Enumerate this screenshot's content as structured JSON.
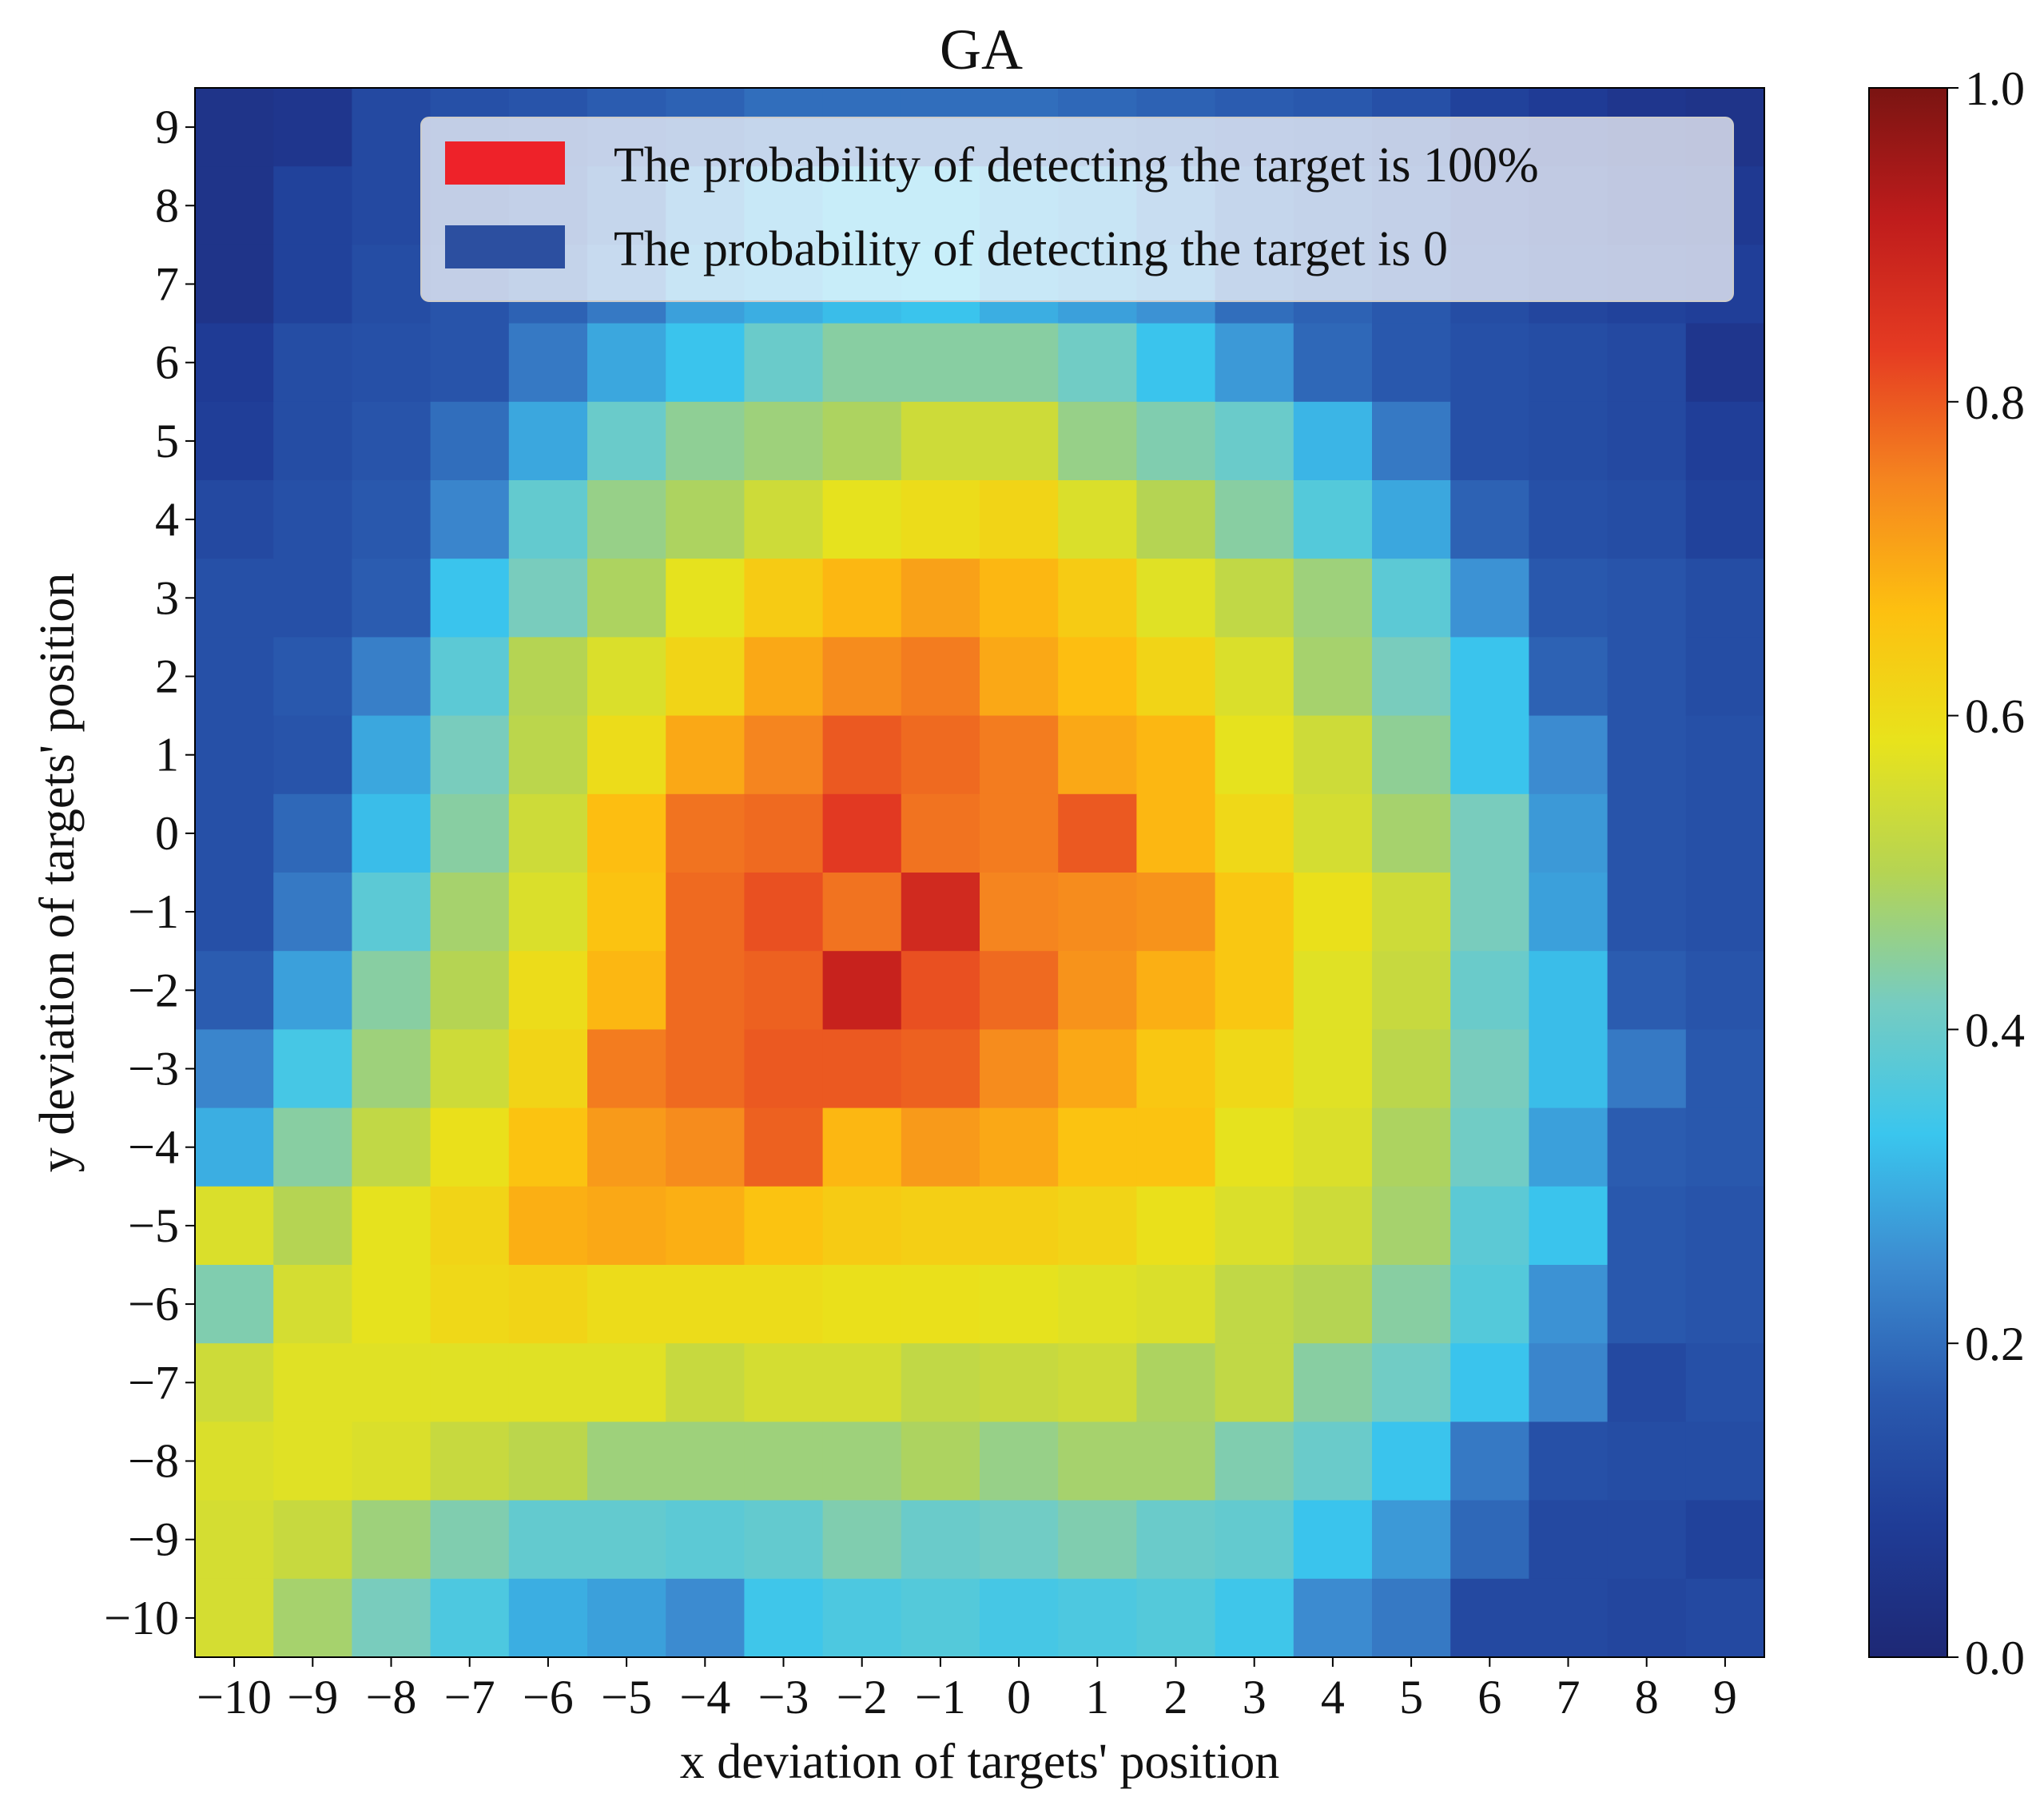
{
  "chart_data": {
    "type": "heatmap",
    "title": "GA",
    "xlabel": "x deviation of targets' position",
    "ylabel": "y deviation of targets' position",
    "x": [
      -10,
      -9,
      -8,
      -7,
      -6,
      -5,
      -4,
      -3,
      -2,
      -1,
      0,
      1,
      2,
      3,
      4,
      5,
      6,
      7,
      8,
      9
    ],
    "y": [
      9,
      8,
      7,
      6,
      5,
      4,
      3,
      2,
      1,
      0,
      -1,
      -2,
      -3,
      -4,
      -5,
      -6,
      -7,
      -8,
      -9,
      -10
    ],
    "x_tick_labels": [
      "−10",
      "−9",
      "−8",
      "−7",
      "−6",
      "−5",
      "−4",
      "−3",
      "−2",
      "−1",
      "0",
      "1",
      "2",
      "3",
      "4",
      "5",
      "6",
      "7",
      "8",
      "9"
    ],
    "y_tick_labels": [
      "9",
      "8",
      "7",
      "6",
      "5",
      "4",
      "3",
      "2",
      "1",
      "0",
      "−1",
      "−2",
      "−3",
      "−4",
      "−5",
      "−6",
      "−7",
      "−8",
      "−9",
      "−10"
    ],
    "values": [
      [
        0.05,
        0.06,
        0.12,
        0.14,
        0.15,
        0.17,
        0.18,
        0.2,
        0.2,
        0.2,
        0.2,
        0.19,
        0.18,
        0.17,
        0.16,
        0.14,
        0.1,
        0.08,
        0.06,
        0.05
      ],
      [
        0.05,
        0.1,
        0.12,
        0.14,
        0.16,
        0.2,
        0.26,
        0.3,
        0.32,
        0.32,
        0.3,
        0.28,
        0.24,
        0.2,
        0.18,
        0.16,
        0.12,
        0.1,
        0.08,
        0.07
      ],
      [
        0.05,
        0.1,
        0.13,
        0.15,
        0.18,
        0.22,
        0.28,
        0.3,
        0.32,
        0.33,
        0.3,
        0.28,
        0.26,
        0.2,
        0.18,
        0.16,
        0.13,
        0.11,
        0.1,
        0.09
      ],
      [
        0.08,
        0.13,
        0.14,
        0.15,
        0.22,
        0.29,
        0.33,
        0.4,
        0.44,
        0.44,
        0.44,
        0.41,
        0.33,
        0.27,
        0.19,
        0.16,
        0.14,
        0.13,
        0.12,
        0.06
      ],
      [
        0.09,
        0.13,
        0.15,
        0.2,
        0.29,
        0.4,
        0.45,
        0.47,
        0.49,
        0.54,
        0.54,
        0.46,
        0.43,
        0.4,
        0.31,
        0.22,
        0.14,
        0.13,
        0.12,
        0.09
      ],
      [
        0.12,
        0.14,
        0.16,
        0.24,
        0.39,
        0.46,
        0.49,
        0.54,
        0.58,
        0.6,
        0.62,
        0.56,
        0.5,
        0.44,
        0.37,
        0.29,
        0.18,
        0.14,
        0.13,
        0.1
      ],
      [
        0.14,
        0.14,
        0.17,
        0.33,
        0.42,
        0.49,
        0.58,
        0.64,
        0.68,
        0.71,
        0.68,
        0.64,
        0.57,
        0.52,
        0.47,
        0.38,
        0.26,
        0.16,
        0.15,
        0.13
      ],
      [
        0.14,
        0.16,
        0.23,
        0.38,
        0.5,
        0.56,
        0.62,
        0.7,
        0.74,
        0.76,
        0.7,
        0.67,
        0.62,
        0.56,
        0.48,
        0.42,
        0.33,
        0.18,
        0.15,
        0.13
      ],
      [
        0.14,
        0.15,
        0.29,
        0.42,
        0.51,
        0.6,
        0.7,
        0.75,
        0.8,
        0.78,
        0.76,
        0.7,
        0.68,
        0.58,
        0.54,
        0.45,
        0.33,
        0.25,
        0.15,
        0.14
      ],
      [
        0.14,
        0.19,
        0.32,
        0.44,
        0.54,
        0.67,
        0.77,
        0.78,
        0.84,
        0.77,
        0.76,
        0.8,
        0.68,
        0.61,
        0.55,
        0.48,
        0.42,
        0.27,
        0.15,
        0.14
      ],
      [
        0.14,
        0.22,
        0.38,
        0.48,
        0.56,
        0.66,
        0.78,
        0.81,
        0.77,
        0.88,
        0.75,
        0.74,
        0.73,
        0.65,
        0.59,
        0.54,
        0.42,
        0.28,
        0.15,
        0.14
      ],
      [
        0.17,
        0.28,
        0.44,
        0.5,
        0.6,
        0.68,
        0.78,
        0.79,
        0.9,
        0.81,
        0.78,
        0.73,
        0.69,
        0.65,
        0.57,
        0.53,
        0.4,
        0.32,
        0.17,
        0.15
      ],
      [
        0.24,
        0.35,
        0.47,
        0.54,
        0.62,
        0.76,
        0.78,
        0.8,
        0.8,
        0.79,
        0.74,
        0.7,
        0.65,
        0.61,
        0.57,
        0.51,
        0.42,
        0.32,
        0.22,
        0.16
      ],
      [
        0.3,
        0.44,
        0.52,
        0.59,
        0.66,
        0.72,
        0.74,
        0.79,
        0.68,
        0.72,
        0.7,
        0.66,
        0.66,
        0.58,
        0.56,
        0.49,
        0.41,
        0.28,
        0.17,
        0.16
      ],
      [
        0.56,
        0.5,
        0.58,
        0.62,
        0.69,
        0.7,
        0.69,
        0.66,
        0.64,
        0.63,
        0.63,
        0.62,
        0.59,
        0.56,
        0.54,
        0.48,
        0.38,
        0.33,
        0.16,
        0.15
      ],
      [
        0.43,
        0.55,
        0.58,
        0.61,
        0.62,
        0.6,
        0.6,
        0.6,
        0.59,
        0.59,
        0.58,
        0.57,
        0.56,
        0.52,
        0.5,
        0.44,
        0.37,
        0.26,
        0.16,
        0.15
      ],
      [
        0.54,
        0.57,
        0.57,
        0.57,
        0.57,
        0.57,
        0.53,
        0.55,
        0.55,
        0.52,
        0.53,
        0.54,
        0.49,
        0.52,
        0.44,
        0.41,
        0.33,
        0.24,
        0.12,
        0.14
      ],
      [
        0.56,
        0.57,
        0.56,
        0.53,
        0.51,
        0.47,
        0.47,
        0.47,
        0.47,
        0.49,
        0.46,
        0.48,
        0.48,
        0.43,
        0.4,
        0.33,
        0.22,
        0.14,
        0.13,
        0.13
      ],
      [
        0.55,
        0.53,
        0.47,
        0.43,
        0.39,
        0.39,
        0.38,
        0.39,
        0.43,
        0.4,
        0.41,
        0.43,
        0.4,
        0.39,
        0.33,
        0.27,
        0.19,
        0.12,
        0.12,
        0.1
      ],
      [
        0.55,
        0.48,
        0.42,
        0.36,
        0.3,
        0.28,
        0.25,
        0.34,
        0.36,
        0.37,
        0.35,
        0.36,
        0.37,
        0.34,
        0.25,
        0.22,
        0.12,
        0.12,
        0.11,
        0.12
      ]
    ],
    "colormap": "RdYlBu_r-like (dark blue → cyan → yellow → red)",
    "color_stops": [
      "#1e2875",
      "#1f3c96",
      "#2a5aaf",
      "#3c8bd0",
      "#3ac6ee",
      "#76ccc1",
      "#b5d453",
      "#e8e31c",
      "#fdc010",
      "#f5851f",
      "#e53b22",
      "#bf1c1c",
      "#7a1412"
    ],
    "vmin": 0.0,
    "vmax": 1.0,
    "colorbar": {
      "ticks": [
        0.0,
        0.2,
        0.4,
        0.6,
        0.8,
        1.0
      ],
      "tick_labels": [
        "0.0",
        "0.2",
        "0.4",
        "0.6",
        "0.8",
        "1.0"
      ]
    },
    "legend": {
      "placement": "upper-center",
      "entries": [
        {
          "label": "The probability of detecting the target is 100%",
          "color": "#ee2229"
        },
        {
          "label": "The probability of detecting the target is 0",
          "color": "#2c4fa0"
        }
      ]
    },
    "grid": false
  }
}
